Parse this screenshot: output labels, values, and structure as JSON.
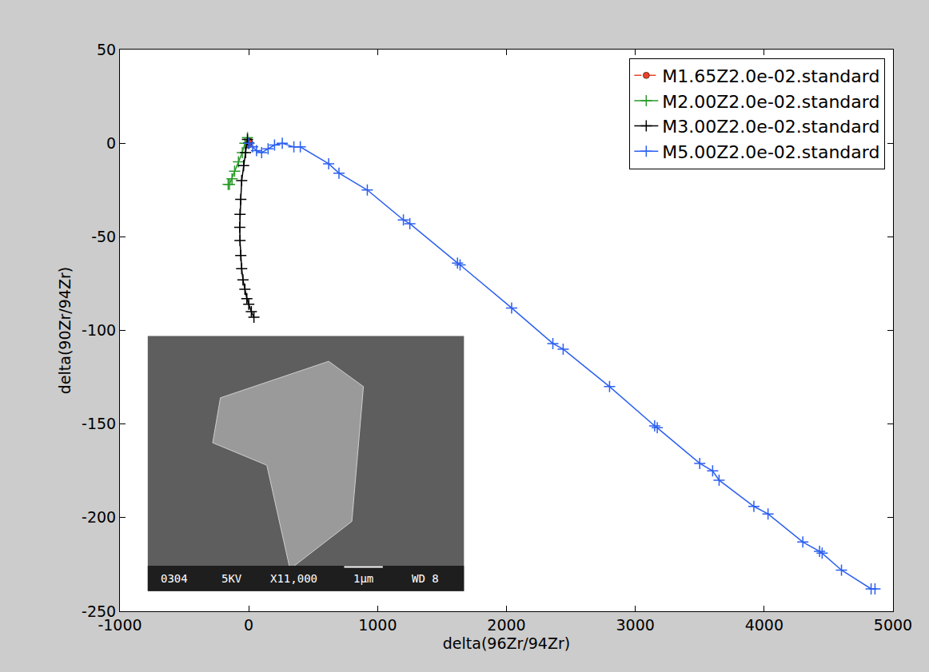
{
  "chart_data": {
    "type": "line",
    "x_label": "delta(96Zr/94Zr)",
    "y_label": "delta(90Zr/94Zr)",
    "xlim": [
      -1000,
      5000
    ],
    "xticks": [
      -1000,
      0,
      1000,
      2000,
      3000,
      4000,
      5000
    ],
    "ylim": [
      -250,
      50
    ],
    "yticks": [
      -250,
      -200,
      -150,
      -100,
      -50,
      0,
      50
    ],
    "grid": false,
    "legend": "upper right",
    "annotations": [
      "0304",
      "5KV",
      "X11,000",
      "1μm",
      "WD 8"
    ],
    "series": [
      {
        "name": "M1.65Z2.0e-02.standard",
        "color": "#e8432b",
        "marker": "circle",
        "line_style": "dashed",
        "x": [
          0,
          4,
          -3,
          2
        ],
        "values": [
          0,
          1,
          -1,
          0.5
        ]
      },
      {
        "name": "M2.00Z2.0e-02.standard",
        "color": "#2a9a2a",
        "marker": "plus",
        "line_style": "solid",
        "x": [
          0,
          -10,
          -30,
          -50,
          -80,
          -110,
          -130,
          -150,
          -160
        ],
        "values": [
          0,
          3,
          0,
          -5,
          -10,
          -15,
          -19,
          -22,
          -22
        ]
      },
      {
        "name": "M3.00Z2.0e-02.standard",
        "color": "#000000",
        "marker": "plus",
        "line_style": "solid",
        "x": [
          0,
          -10,
          -25,
          -40,
          -55,
          -62,
          -68,
          -70,
          -68,
          -62,
          -55,
          -45,
          -30,
          -15,
          0,
          20,
          40
        ],
        "values": [
          0,
          2,
          -5,
          -12,
          -20,
          -30,
          -38,
          -45,
          -52,
          -60,
          -67,
          -73,
          -78,
          -83,
          -86,
          -90,
          -93
        ]
      },
      {
        "name": "M5.00Z2.0e-02.standard",
        "color": "#2b5ff0",
        "marker": "plus",
        "line_style": "solid",
        "x": [
          0,
          30,
          60,
          100,
          150,
          200,
          260,
          350,
          400,
          620,
          700,
          920,
          1200,
          1250,
          1620,
          1640,
          2040,
          2360,
          2440,
          2800,
          3150,
          3170,
          3500,
          3600,
          3650,
          3920,
          4030,
          4300,
          4430,
          4450,
          4600,
          4830,
          4860
        ],
        "values": [
          0,
          -2,
          -4,
          -5,
          -3,
          -1,
          0,
          -2,
          -2,
          -11,
          -16,
          -25,
          -41,
          -43,
          -64,
          -65,
          -88,
          -107,
          -110,
          -130,
          -151,
          -152,
          -171,
          -175,
          -180,
          -194,
          -198,
          -213,
          -218,
          -219,
          -228,
          -238,
          -238
        ]
      }
    ]
  }
}
